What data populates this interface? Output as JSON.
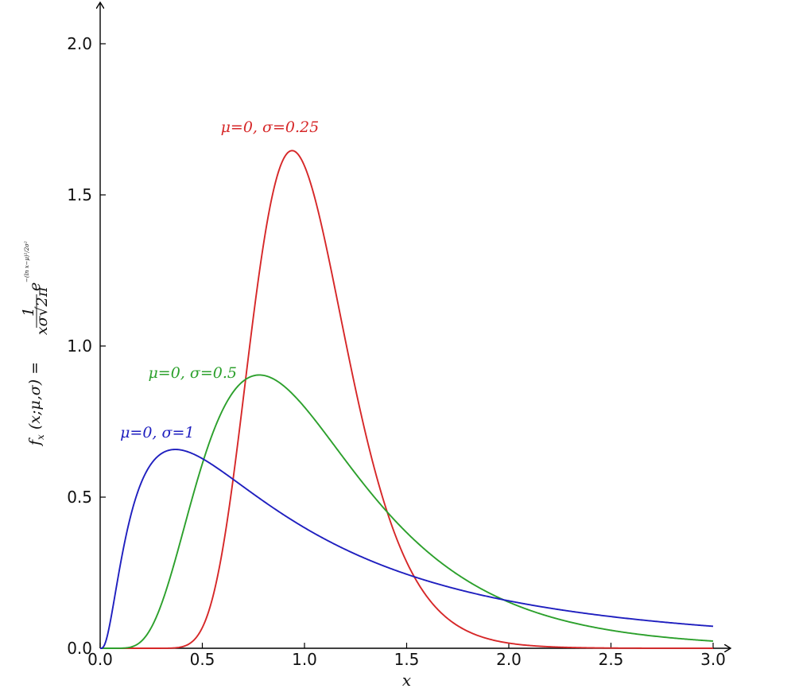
{
  "chart_data": {
    "type": "line",
    "xlabel": "x",
    "ylabel": "f_x(x;μ,σ) = 1/(xσ√2π) e^(−(ln x−μ)²/2σ²)",
    "ylabel_parts": {
      "lhs": "f",
      "lhs_sub": "x",
      "args": " (x;μ,σ) =",
      "frac_num": "1",
      "frac_den": "xσ√2π",
      "base": "e",
      "exp": "−(ln x−μ)²/2σ²"
    },
    "xlim": [
      0,
      3.0
    ],
    "ylim": [
      0,
      2.0
    ],
    "x_ticks": [
      "0.0",
      "0.5",
      "1.0",
      "1.5",
      "2.0",
      "2.5",
      "3.0"
    ],
    "y_ticks": [
      "0.0",
      "0.5",
      "1.0",
      "1.5",
      "2.0"
    ],
    "grid": false,
    "curve_type": "lognormal_pdf",
    "series": [
      {
        "name": "μ=0, σ=0.25",
        "mu": 0,
        "sigma": 0.25,
        "color": "#d62728",
        "peak": [
          0.94,
          1.65
        ]
      },
      {
        "name": "μ=0, σ=0.5",
        "mu": 0,
        "sigma": 0.5,
        "color": "#2ca02c",
        "peak": [
          0.78,
          0.9
        ]
      },
      {
        "name": "μ=0, σ=1",
        "mu": 0,
        "sigma": 1,
        "color": "#1f1fbf",
        "peak": [
          0.37,
          0.66
        ]
      }
    ]
  }
}
